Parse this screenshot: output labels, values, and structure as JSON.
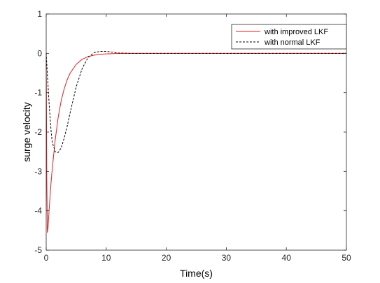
{
  "chart_data": {
    "type": "line",
    "title": "",
    "xlabel": "Time(s)",
    "ylabel": "surge velocity",
    "xlim": [
      0,
      50
    ],
    "ylim": [
      -5,
      1
    ],
    "xticks": [
      0,
      10,
      20,
      30,
      40,
      50
    ],
    "yticks": [
      -5,
      -4,
      -3,
      -2,
      -1,
      0,
      1
    ],
    "xtick_labels": [
      "0",
      "10",
      "20",
      "30",
      "40",
      "50"
    ],
    "ytick_labels": [
      "-5",
      "-4",
      "-3",
      "-2",
      "-1",
      "0",
      "1"
    ],
    "grid": false,
    "legend_position": "top-right",
    "series": [
      {
        "name": "with improved LKF",
        "color": "#e41a1c",
        "style": "solid",
        "x": [
          0,
          0.1,
          0.2,
          0.3,
          0.5,
          0.8,
          1.0,
          1.5,
          2.0,
          2.5,
          3.0,
          3.5,
          4.0,
          5.0,
          6.0,
          7.0,
          8.0,
          9.0,
          10.0,
          12.0,
          14.0,
          16.0,
          20.0,
          30.0,
          40.0,
          50.0
        ],
        "values": [
          0,
          -3.2,
          -4.55,
          -4.45,
          -3.95,
          -3.3,
          -2.95,
          -2.2,
          -1.62,
          -1.2,
          -0.9,
          -0.67,
          -0.5,
          -0.28,
          -0.15,
          -0.08,
          -0.045,
          -0.025,
          -0.013,
          -0.004,
          -0.001,
          0,
          0,
          0,
          0,
          0
        ]
      },
      {
        "name": "with normal LKF",
        "color": "#000000",
        "style": "dashed",
        "x": [
          0,
          0.2,
          0.5,
          0.8,
          1.0,
          1.5,
          2.0,
          2.5,
          3.0,
          3.5,
          4.0,
          5.0,
          6.0,
          7.0,
          8.0,
          9.0,
          10.0,
          11.0,
          12.0,
          14.0,
          16.0,
          20.0,
          30.0,
          40.0,
          50.0
        ],
        "values": [
          0,
          -0.55,
          -1.3,
          -1.95,
          -2.25,
          -2.5,
          -2.52,
          -2.4,
          -2.15,
          -1.85,
          -1.5,
          -0.85,
          -0.38,
          -0.1,
          0.02,
          0.05,
          0.05,
          0.03,
          0.01,
          0,
          0,
          0,
          0,
          0,
          0
        ]
      }
    ]
  }
}
